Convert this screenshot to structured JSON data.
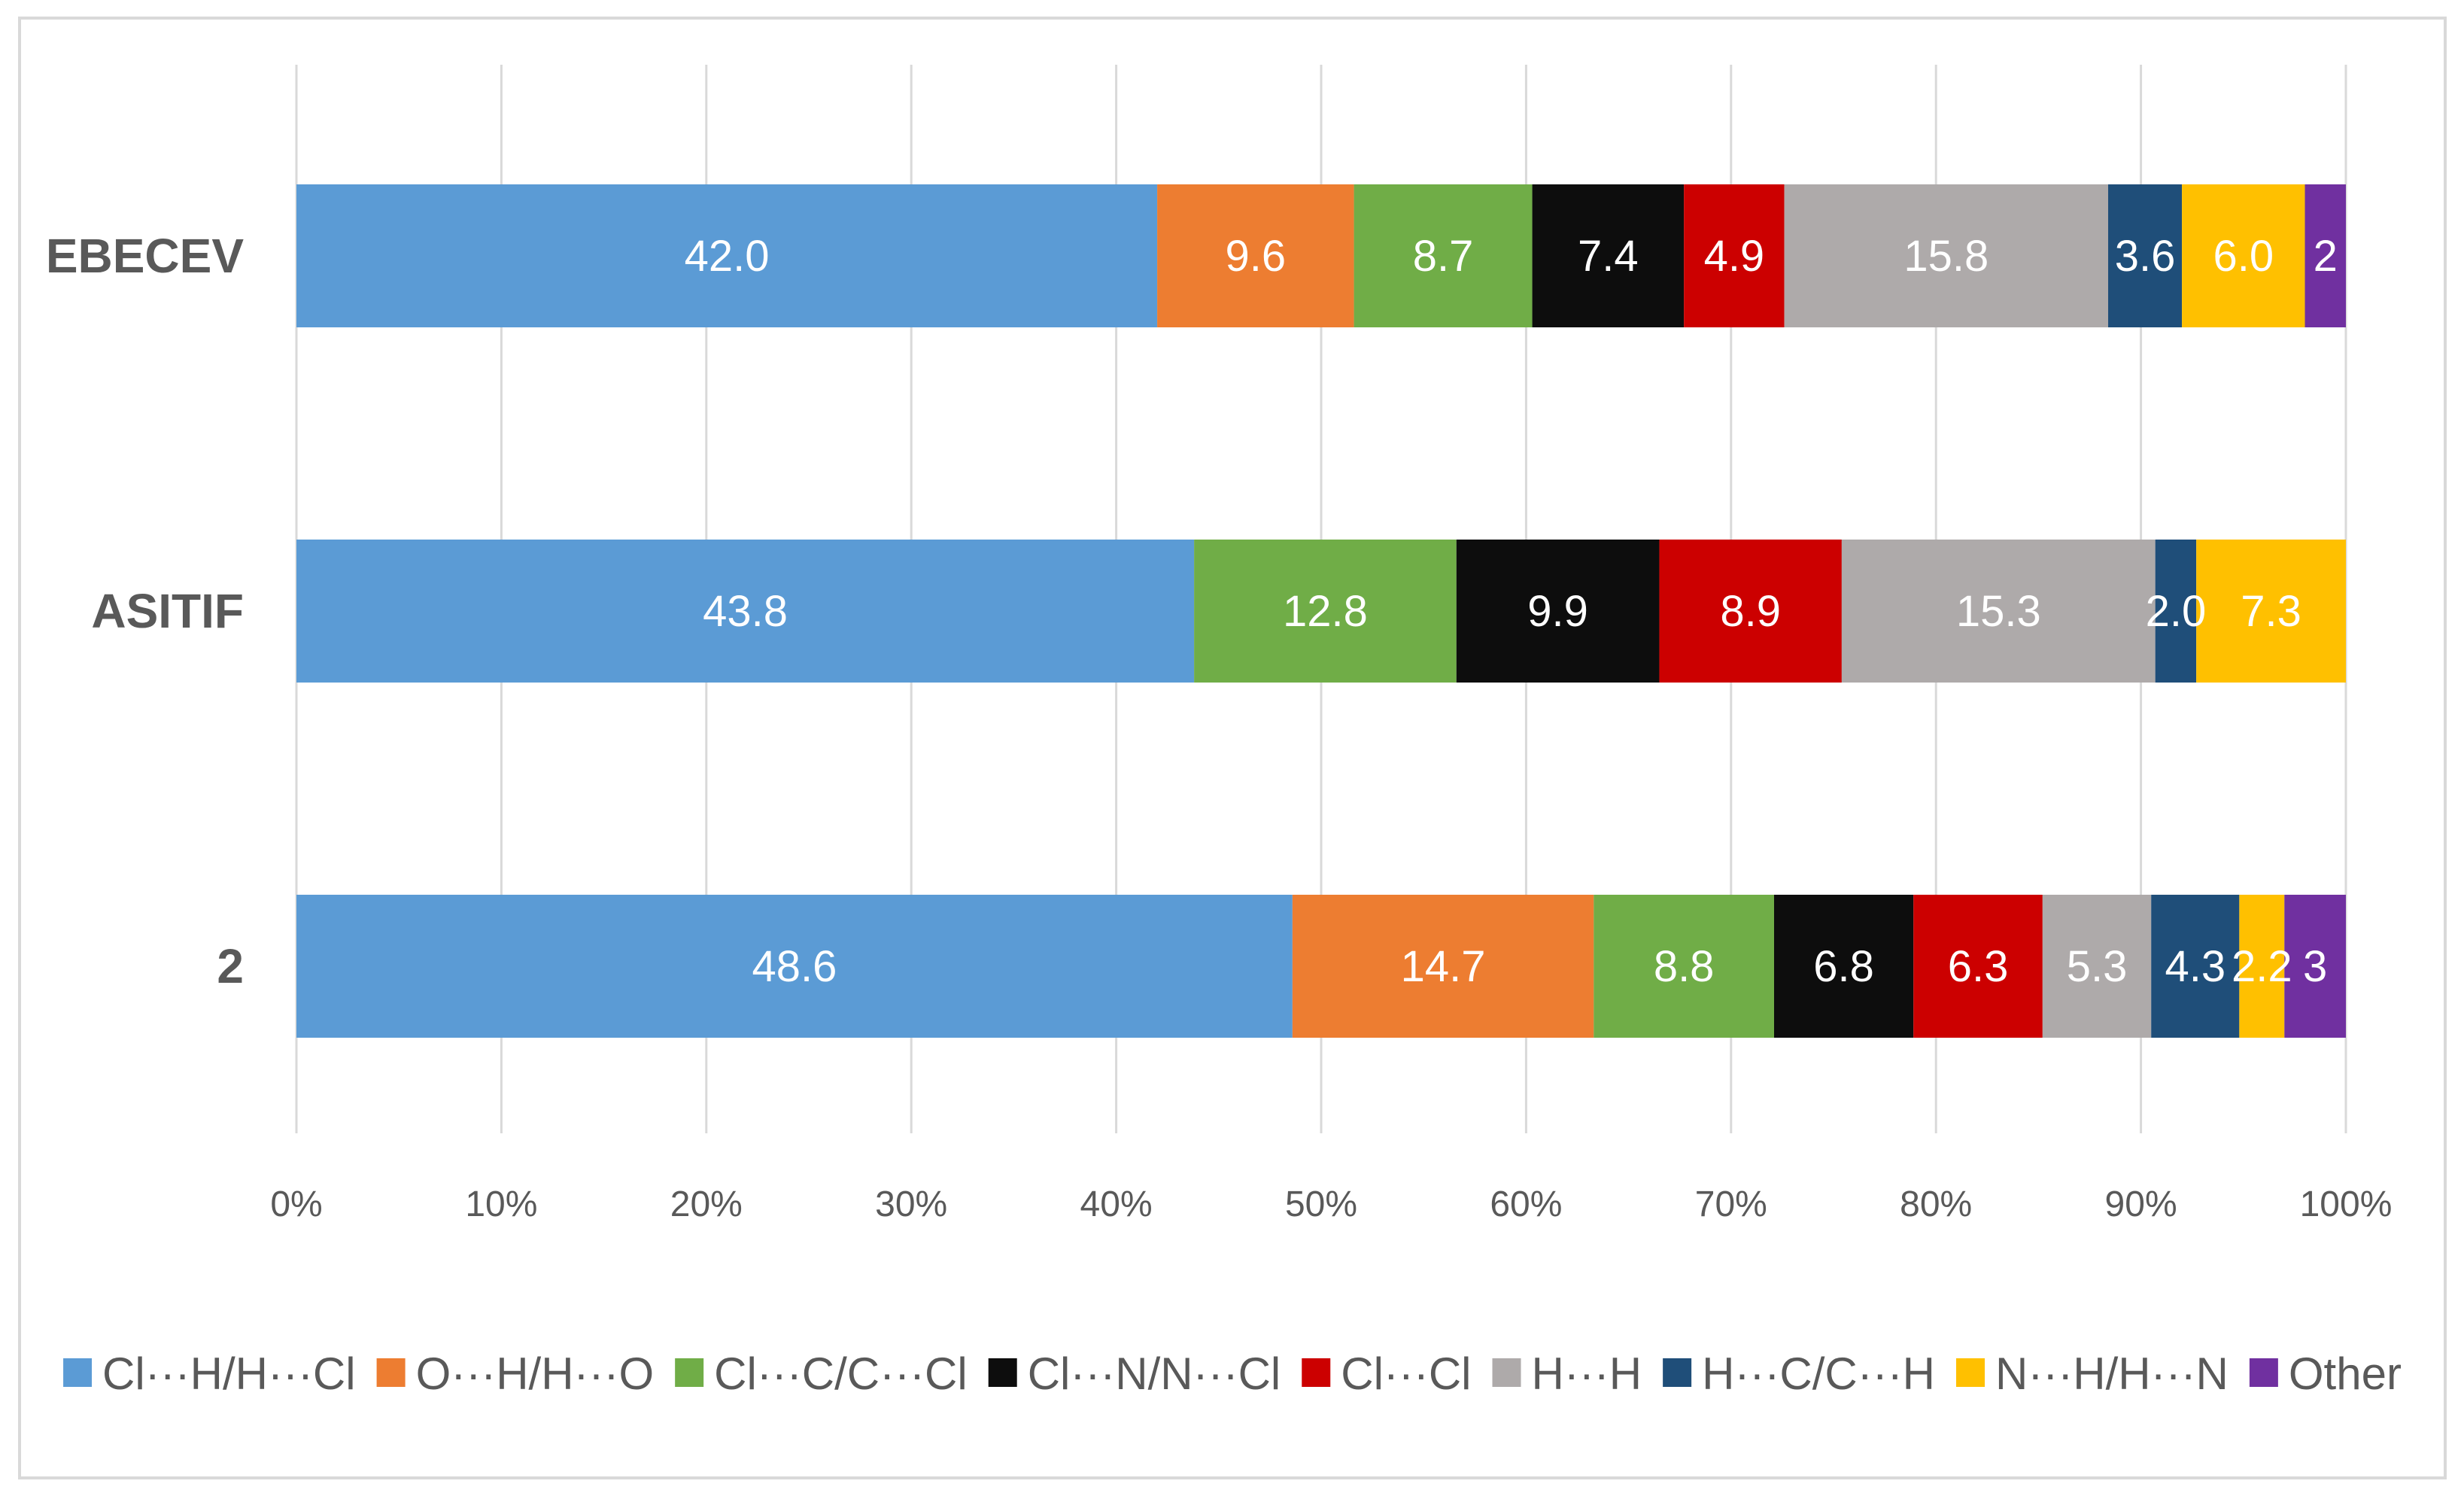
{
  "chart_data": {
    "type": "bar",
    "orientation": "horizontal",
    "stacked": "percent",
    "title": "",
    "xlabel": "",
    "ylabel": "",
    "xlim": [
      0,
      100
    ],
    "grid": true,
    "legend_position": "bottom",
    "categories": [
      "EBECEV",
      "ASITIF",
      "2"
    ],
    "x_ticks": [
      "0%",
      "10%",
      "20%",
      "30%",
      "40%",
      "50%",
      "60%",
      "70%",
      "80%",
      "90%",
      "100%"
    ],
    "series": [
      {
        "name": "Cl···H/H···Cl",
        "color": "#5b9bd5",
        "values": [
          42.0,
          43.8,
          48.6
        ],
        "labels": [
          "42.0",
          "43.8",
          "48.6"
        ]
      },
      {
        "name": "O···H/H···O",
        "color": "#ed7d31",
        "values": [
          9.6,
          0,
          14.7
        ],
        "labels": [
          "9.6",
          "",
          "14.7"
        ]
      },
      {
        "name": "Cl···C/C···Cl",
        "color": "#70ad47",
        "values": [
          8.7,
          12.8,
          8.8
        ],
        "labels": [
          "8.7",
          "12.8",
          "8.8"
        ]
      },
      {
        "name": "Cl···N/N···Cl",
        "color": "#0d0d0d",
        "values": [
          7.4,
          9.9,
          6.8
        ],
        "labels": [
          "7.4",
          "9.9",
          "6.8"
        ]
      },
      {
        "name": "Cl···Cl",
        "color": "#cc0000",
        "values": [
          4.9,
          8.9,
          6.3
        ],
        "labels": [
          "4.9",
          "8.9",
          "6.3"
        ]
      },
      {
        "name": "H···H",
        "color": "#aeaaaa",
        "values": [
          15.8,
          15.3,
          5.3
        ],
        "labels": [
          "15.8",
          "15.3",
          "5.3"
        ]
      },
      {
        "name": "H···C/C···H",
        "color": "#1f4e79",
        "values": [
          3.6,
          2.0,
          4.3
        ],
        "labels": [
          "3.6",
          "2.0",
          "4.3"
        ]
      },
      {
        "name": "N···H/H···N",
        "color": "#ffc000",
        "values": [
          6.0,
          7.3,
          2.2
        ],
        "labels": [
          "6.0",
          "7.3",
          "2.2"
        ]
      },
      {
        "name": "Other",
        "color": "#7030a0",
        "values": [
          2,
          0,
          3
        ],
        "labels": [
          "2",
          "",
          "3"
        ]
      }
    ]
  },
  "colors": {
    "gridline": "#d9d9d9",
    "text": "#595959",
    "frame": "#d9d9d9"
  }
}
